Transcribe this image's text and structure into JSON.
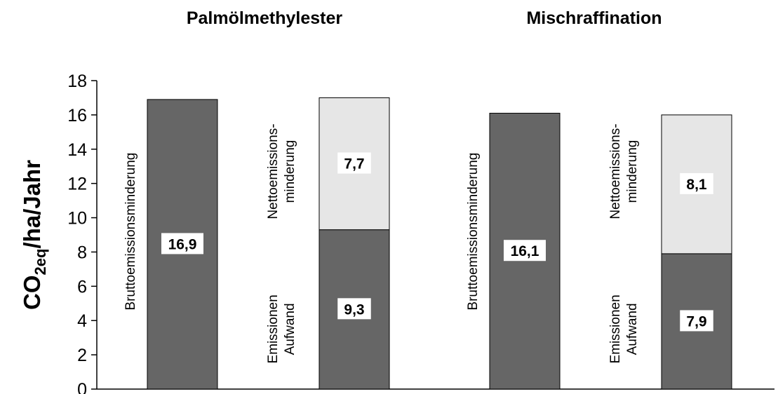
{
  "chart_data": {
    "type": "bar",
    "stacked": true,
    "titles": [
      "Palmölmethylester",
      "Mischraffination"
    ],
    "ylabel": {
      "main": "CO",
      "sub": "2eq",
      "rest": "/ha/Jahr"
    },
    "ylim": [
      0,
      18
    ],
    "yticks": [
      "0",
      "2",
      "4",
      "6",
      "8",
      "10",
      "12",
      "14",
      "16",
      "18"
    ],
    "colors": {
      "dark": "#666666",
      "light": "#e6e6e6"
    },
    "groups": [
      {
        "title": "Palmölmethylester",
        "bars": [
          {
            "segments": [
              {
                "value": 16.9,
                "label": "16,9",
                "color": "dark"
              }
            ],
            "side_text": [
              "Bruttoemissionsminderung"
            ]
          },
          {
            "segments": [
              {
                "value": 9.3,
                "label": "9,3",
                "color": "dark"
              },
              {
                "value": 7.7,
                "label": "7,7",
                "color": "light"
              }
            ],
            "side_text_lower": [
              "Emissionen",
              "Aufwand"
            ],
            "side_text_upper": [
              "Nettoemissions-",
              "minderung"
            ]
          }
        ]
      },
      {
        "title": "Mischraffination",
        "bars": [
          {
            "segments": [
              {
                "value": 16.1,
                "label": "16,1",
                "color": "dark"
              }
            ],
            "side_text": [
              "Bruttoemissionsminderung"
            ]
          },
          {
            "segments": [
              {
                "value": 7.9,
                "label": "7,9",
                "color": "dark"
              },
              {
                "value": 8.1,
                "label": "8,1",
                "color": "light"
              }
            ],
            "side_text_lower": [
              "Emissionen",
              "Aufwand"
            ],
            "side_text_upper": [
              "Nettoemissions-",
              "minderung"
            ]
          }
        ]
      }
    ]
  }
}
